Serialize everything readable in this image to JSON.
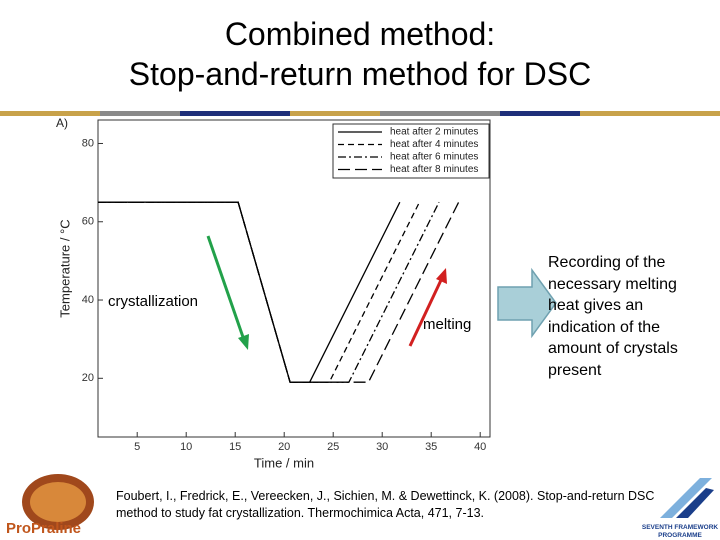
{
  "slide": {
    "title_lines": [
      "Combined method:",
      "Stop-and-return method for DSC"
    ],
    "side_note": "Recording of the necessary melting heat gives an indication of the amount of crystals present",
    "reference": "Foubert, I., Fredrick, E., Vereecken, J., Sichien, M. & Dewettinck, K. (2008). Stop-and-return DSC method to study fat crystallization. Thermochimica Acta, 471, 7-13.",
    "logo_left": "ProPraline",
    "logo_right": "SEVENTH FRAMEWORK PROGRAMME"
  },
  "chart_data": {
    "type": "line",
    "panel_label": "A)",
    "x_label": "Time / min",
    "y_label": "Temperature / °C",
    "xlim": [
      1,
      41
    ],
    "ylim": [
      5,
      86
    ],
    "xticks": [
      5,
      10,
      15,
      20,
      25,
      30,
      35,
      40
    ],
    "yticks": [
      20,
      40,
      60,
      80
    ],
    "annotations": [
      "crystallization",
      "melting"
    ],
    "series": [
      {
        "name": "heat after 2 minutes",
        "color": "#000000",
        "dash": "solid",
        "x": [
          1,
          15.3,
          20.6,
          22.6,
          31.8
        ],
        "values": [
          65,
          65,
          19,
          19,
          65
        ]
      },
      {
        "name": "heat after 4 minutes",
        "color": "#000000",
        "dash": "dashed",
        "x": [
          1,
          15.3,
          20.6,
          24.6,
          33.8
        ],
        "values": [
          65,
          65,
          19,
          19,
          65
        ]
      },
      {
        "name": "heat after 6 minutes",
        "color": "#000000",
        "dash": "dashdot",
        "x": [
          1,
          15.3,
          20.6,
          26.6,
          35.8
        ],
        "values": [
          65,
          65,
          19,
          19,
          65
        ]
      },
      {
        "name": "heat after 8 minutes",
        "color": "#000000",
        "dash": "longdash",
        "x": [
          1,
          15.3,
          20.6,
          28.6,
          37.8
        ],
        "values": [
          65,
          65,
          19,
          19,
          65
        ]
      }
    ]
  }
}
